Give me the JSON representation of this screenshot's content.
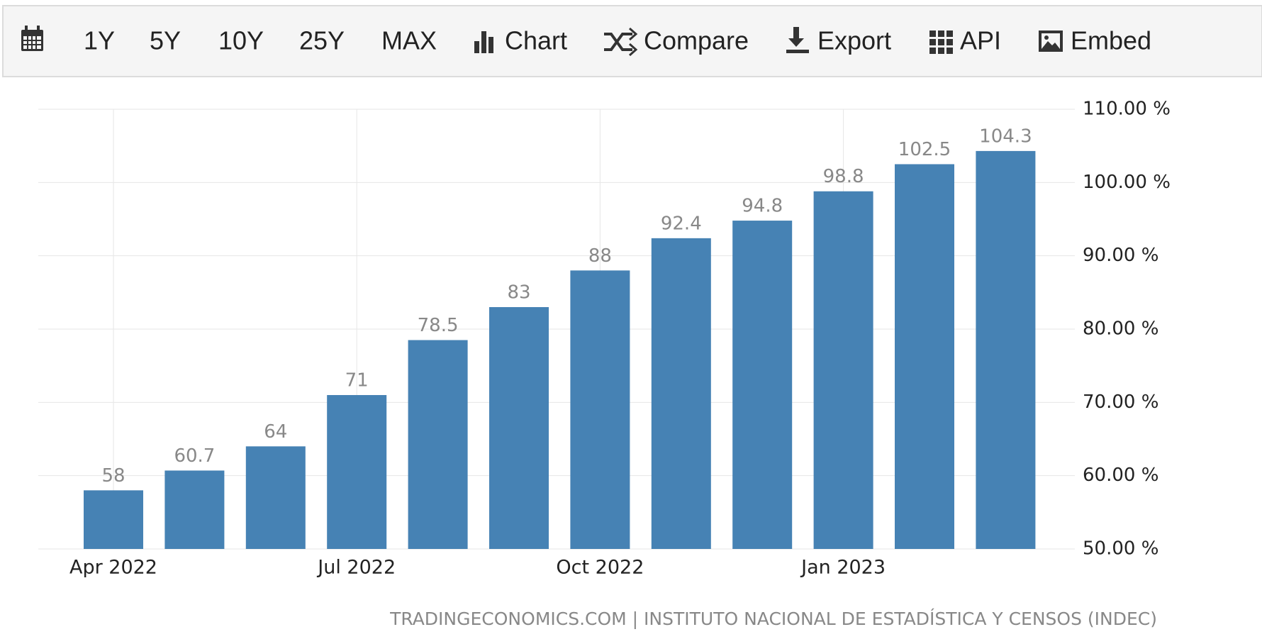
{
  "toolbar": {
    "items": [
      "1Y",
      "5Y",
      "10Y",
      "25Y",
      "MAX",
      "Chart",
      "Compare",
      "Export",
      "API",
      "Embed"
    ]
  },
  "chart_data": {
    "type": "bar",
    "categories": [
      "Apr 2022",
      null,
      null,
      "Jul 2022",
      null,
      null,
      "Oct 2022",
      null,
      null,
      "Jan 2023",
      null,
      null
    ],
    "values": [
      58,
      60.7,
      64,
      71,
      78.5,
      83,
      88,
      92.4,
      94.8,
      98.8,
      102.5,
      104.3
    ],
    "color": "#4682b4",
    "ylim": [
      50,
      110
    ],
    "yticks": [
      {
        "value": 50,
        "label": "50.00 %"
      },
      {
        "value": 60,
        "label": "60.00 %"
      },
      {
        "value": 70,
        "label": "70.00 %"
      },
      {
        "value": 80,
        "label": "80.00 %"
      },
      {
        "value": 90,
        "label": "90.00 %"
      },
      {
        "value": 100,
        "label": "100.00 %"
      },
      {
        "value": 110,
        "label": "110.00 %"
      }
    ],
    "grid": true,
    "source": "TRADINGECONOMICS.COM | INSTITUTO NACIONAL DE ESTADÍSTICA Y CENSOS (INDEC)"
  }
}
